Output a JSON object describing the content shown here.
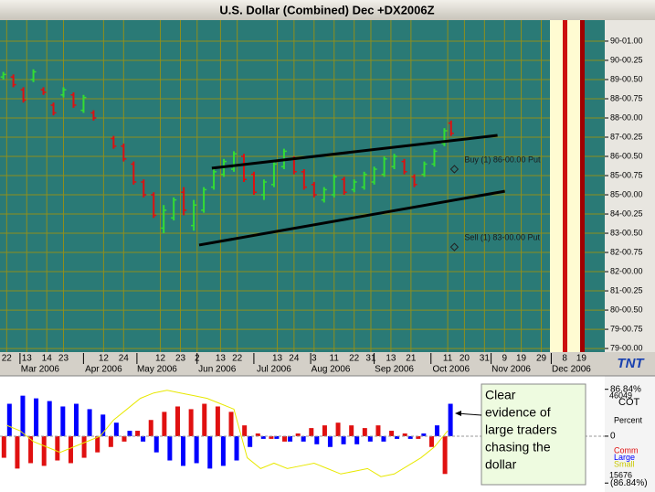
{
  "window_title": "U.S. Dollar (Combined) Dec +DX2006Z",
  "logo": "TNT",
  "note_box": {
    "lines": [
      "Clear",
      "evidence of",
      "large traders",
      "chasing the",
      "dollar"
    ]
  },
  "chart_data": [
    {
      "type": "ohlc",
      "x": [
        1,
        4,
        7,
        10,
        13,
        16,
        19,
        22,
        25,
        28,
        34,
        37,
        40,
        43,
        46,
        49,
        52,
        55,
        58,
        61,
        64,
        67,
        70,
        73,
        76,
        79,
        82,
        85,
        88,
        91,
        94,
        97,
        100,
        103,
        106,
        109,
        112,
        115,
        118,
        121,
        124,
        127,
        130,
        133,
        135
      ],
      "open": [
        88.6,
        88.6,
        88.1,
        88.5,
        88.1,
        87.5,
        87.9,
        87.9,
        87.3,
        87.2,
        86.2,
        85.9,
        85.2,
        84.5,
        84.0,
        82.7,
        83.1,
        84.1,
        82.8,
        83.4,
        84.3,
        84.8,
        85.0,
        85.5,
        84.8,
        84.0,
        84.4,
        85.1,
        85.4,
        84.9,
        84.4,
        83.8,
        84.0,
        84.6,
        84.2,
        84.3,
        84.5,
        84.8,
        85.1,
        85.3,
        84.7,
        84.8,
        85.2,
        86.0,
        86.8
      ],
      "high": [
        88.8,
        88.7,
        88.2,
        88.9,
        88.2,
        87.6,
        88.2,
        88.0,
        87.9,
        87.3,
        86.3,
        86.0,
        85.3,
        84.6,
        84.1,
        83.6,
        83.9,
        84.3,
        83.8,
        84.3,
        85.0,
        85.4,
        85.7,
        85.6,
        84.9,
        84.6,
        85.3,
        85.8,
        85.5,
        85.0,
        84.5,
        84.3,
        84.8,
        84.7,
        84.6,
        84.9,
        85.1,
        85.5,
        85.6,
        85.4,
        84.8,
        85.3,
        85.8,
        86.6,
        86.9
      ],
      "low": [
        88.5,
        88.2,
        87.6,
        88.4,
        87.9,
        87.1,
        87.8,
        87.4,
        87.2,
        86.9,
        85.8,
        85.3,
        84.4,
        83.9,
        83.1,
        82.5,
        83.0,
        83.2,
        82.6,
        83.3,
        84.2,
        84.7,
        84.9,
        84.5,
        84.0,
        83.8,
        84.3,
        85.0,
        84.8,
        84.2,
        83.9,
        83.7,
        83.9,
        84.0,
        84.1,
        84.2,
        84.4,
        84.7,
        85.0,
        84.8,
        84.3,
        84.7,
        85.1,
        85.9,
        86.3
      ],
      "close": [
        88.7,
        88.3,
        87.7,
        88.8,
        88.0,
        87.2,
        88.1,
        87.5,
        87.8,
        87.0,
        85.9,
        85.4,
        84.5,
        84.0,
        83.2,
        83.4,
        83.8,
        83.4,
        83.6,
        84.2,
        84.9,
        85.3,
        85.6,
        84.6,
        84.1,
        84.5,
        85.2,
        85.7,
        84.9,
        84.3,
        84.0,
        84.2,
        84.7,
        84.1,
        84.5,
        84.8,
        85.0,
        85.4,
        85.5,
        84.9,
        84.4,
        85.2,
        85.7,
        86.5,
        86.4
      ],
      "up_color": "#33dd33",
      "down_color": "#dd1111",
      "xlim": [
        0,
        181
      ],
      "ylim": [
        77.86,
        90.82
      ],
      "yticks": [
        {
          "value": 90,
          "label": "90-01.00"
        },
        {
          "value": 89.25,
          "label": "90-00.25"
        },
        {
          "value": 88.5,
          "label": "89-00.50"
        },
        {
          "value": 87.75,
          "label": "88-00.75"
        },
        {
          "value": 87,
          "label": "88-00.00"
        },
        {
          "value": 86.25,
          "label": "87-00.25"
        },
        {
          "value": 85.5,
          "label": "86-00.50"
        },
        {
          "value": 84.75,
          "label": "85-00.75"
        },
        {
          "value": 84,
          "label": "85-00.00"
        },
        {
          "value": 83.25,
          "label": "84-00.25"
        },
        {
          "value": 82.5,
          "label": "83-00.50"
        },
        {
          "value": 81.75,
          "label": "82-00.75"
        },
        {
          "value": 81,
          "label": "82-00.00"
        },
        {
          "value": 80.25,
          "label": "81-00.25"
        },
        {
          "value": 79.5,
          "label": "80-00.50"
        },
        {
          "value": 78.75,
          "label": "79-00.75"
        },
        {
          "value": 78,
          "label": "79-00.00"
        }
      ],
      "xticks": [
        {
          "value": 2,
          "label": "22"
        },
        {
          "value": 8,
          "label": "13"
        },
        {
          "value": 14,
          "label": "14"
        },
        {
          "value": 19,
          "label": "23"
        },
        {
          "value": 31,
          "label": "12"
        },
        {
          "value": 37,
          "label": "24"
        },
        {
          "value": 48,
          "label": "12"
        },
        {
          "value": 54,
          "label": "23"
        },
        {
          "value": 59,
          "label": "2"
        },
        {
          "value": 66,
          "label": "13"
        },
        {
          "value": 71,
          "label": "22"
        },
        {
          "value": 83,
          "label": "13"
        },
        {
          "value": 88,
          "label": "24"
        },
        {
          "value": 94,
          "label": "3"
        },
        {
          "value": 100,
          "label": "11"
        },
        {
          "value": 106,
          "label": "22"
        },
        {
          "value": 111,
          "label": "31"
        },
        {
          "value": 117,
          "label": "13"
        },
        {
          "value": 123,
          "label": "21"
        },
        {
          "value": 134,
          "label": "11"
        },
        {
          "value": 139,
          "label": "20"
        },
        {
          "value": 145,
          "label": "31"
        },
        {
          "value": 151,
          "label": "9"
        },
        {
          "value": 156,
          "label": "19"
        },
        {
          "value": 162,
          "label": "29"
        },
        {
          "value": 169,
          "label": "8"
        },
        {
          "value": 174,
          "label": "19"
        }
      ],
      "month_ticks": [
        {
          "value": 12,
          "label": "Mar 2006"
        },
        {
          "value": 31,
          "label": "Apr 2006"
        },
        {
          "value": 47,
          "label": "May 2006"
        },
        {
          "value": 65,
          "label": "Jun 2006"
        },
        {
          "value": 82,
          "label": "Jul 2006"
        },
        {
          "value": 99,
          "label": "Aug 2006"
        },
        {
          "value": 118,
          "label": "Sep 2006"
        },
        {
          "value": 135,
          "label": "Oct 2006"
        },
        {
          "value": 153,
          "label": "Nov 2006"
        },
        {
          "value": 171,
          "label": "Dec 2006"
        }
      ],
      "grid": true,
      "trendlines": [
        {
          "x": [
            63.4,
            148.9
          ],
          "y": [
            85.04,
            86.32
          ],
          "color": "#000000"
        },
        {
          "x": [
            59.6,
            151.1
          ],
          "y": [
            82.04,
            84.14
          ],
          "color": "#000000"
        }
      ],
      "annotations": [
        {
          "text": "Buy (1) 86-00.00 Put",
          "x": 136,
          "y": 85.0
        },
        {
          "text": "Sell (1) 83-00.00 Put",
          "x": 136,
          "y": 81.96
        }
      ]
    },
    {
      "type": "bar",
      "title": "COT",
      "ylabel": "Percent",
      "x": [
        2,
        6,
        10,
        14,
        18,
        22,
        26,
        30,
        34,
        38,
        42,
        46,
        50,
        54,
        58,
        62,
        66,
        70,
        74,
        78,
        82,
        86,
        90,
        94,
        98,
        102,
        106,
        110,
        114,
        118,
        122,
        126,
        130,
        134
      ],
      "series": [
        {
          "name": "Comm",
          "color": "#e01010",
          "values": [
            -40,
            -60,
            -50,
            -55,
            -45,
            -50,
            -40,
            -30,
            -20,
            -10,
            10,
            30,
            45,
            55,
            50,
            60,
            55,
            45,
            20,
            5,
            -5,
            -10,
            5,
            15,
            20,
            25,
            20,
            15,
            20,
            10,
            5,
            -5,
            -20,
            -70
          ]
        },
        {
          "name": "Large",
          "color": "#0000ff",
          "values": [
            60,
            75,
            70,
            65,
            55,
            60,
            50,
            40,
            25,
            10,
            -10,
            -30,
            -45,
            -55,
            -50,
            -60,
            -55,
            -45,
            -20,
            -5,
            -5,
            -10,
            -10,
            -15,
            -20,
            -15,
            -15,
            -10,
            -10,
            -5,
            -5,
            5,
            20,
            60
          ]
        },
        {
          "name": "Small",
          "color": "#e8e800",
          "values": [
            20,
            10,
            -10,
            -20,
            -30,
            -20,
            -10,
            0,
            30,
            50,
            70,
            80,
            85,
            80,
            75,
            70,
            60,
            50,
            -40,
            -60,
            -50,
            -60,
            -55,
            -50,
            -60,
            -70,
            -65,
            -60,
            -75,
            -70,
            -55,
            -40,
            -20,
            10
          ]
        }
      ],
      "xlim": [
        0,
        181
      ],
      "ylim": [
        -100,
        110
      ],
      "yticks": [
        {
          "value": 86.84,
          "label": "86.84%"
        },
        0,
        {
          "value": -86.84,
          "label": "(86.84%)"
        }
      ],
      "side_values": [
        46049,
        15676
      ]
    }
  ]
}
